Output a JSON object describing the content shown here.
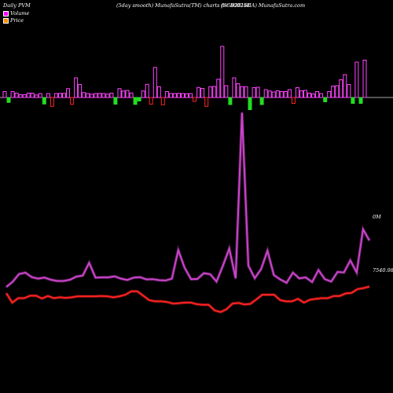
{
  "header": {
    "left": "Daily PVM",
    "middle": "(5day smooth) MunafaSutra(TM) charts for 800258",
    "right": "(SGB2016IIA) MunafaSutra.com"
  },
  "legend": [
    {
      "label": "Volume",
      "color": "#ff00ff"
    },
    {
      "label": "Price",
      "color": "#ff8c00"
    }
  ],
  "end_labels": {
    "volume": "0M",
    "price": "7540.98"
  },
  "colors": {
    "background": "#000000",
    "baseline": "#aaaaaa",
    "volume_line": "#cc44cc",
    "price_line": "#ff2222",
    "bar_up": "#ff00ff",
    "bar_up_outline": "#ff44ff",
    "bar_down": "#22dd22",
    "bar_down_red": "#ff2222"
  },
  "chart_data": {
    "type": "line",
    "title": "",
    "series": [
      {
        "name": "Volume",
        "values": [
          0.3,
          0.5,
          0.8,
          0.85,
          0.68,
          0.62,
          0.66,
          0.58,
          0.53,
          0.53,
          0.58,
          0.7,
          0.74,
          1.23,
          0.66,
          0.67,
          0.67,
          0.71,
          0.62,
          0.57,
          0.66,
          0.68,
          0.59,
          0.6,
          0.56,
          0.55,
          0.62,
          1.72,
          1.04,
          0.6,
          0.61,
          0.83,
          0.79,
          0.51,
          1.12,
          1.78,
          0.63,
          7.02,
          1.12,
          0.64,
          0.99,
          1.7,
          0.76,
          0.59,
          0.46,
          0.85,
          0.63,
          0.67,
          0.49,
          0.95,
          0.6,
          0.51,
          0.88,
          0.86,
          1.32,
          0.86,
          2.52,
          2.09
        ]
      },
      {
        "name": "Price",
        "values": [
          0.3,
          0.0,
          0.14,
          0.14,
          0.22,
          0.22,
          0.13,
          0.21,
          0.14,
          0.17,
          0.15,
          0.17,
          0.2,
          0.2,
          0.2,
          0.2,
          0.21,
          0.2,
          0.17,
          0.2,
          0.25,
          0.36,
          0.36,
          0.22,
          0.08,
          0.04,
          0.04,
          0.02,
          -0.03,
          -0.02,
          0.0,
          0.0,
          -0.05,
          -0.07,
          -0.07,
          -0.25,
          -0.3,
          -0.21,
          -0.03,
          -0.01,
          -0.06,
          -0.04,
          0.1,
          0.25,
          0.25,
          0.25,
          0.08,
          0.04,
          0.04,
          0.12,
          0.0,
          0.09,
          0.12,
          0.14,
          0.14,
          0.21,
          0.21,
          0.29,
          0.31,
          0.43,
          0.46,
          0.51
        ]
      }
    ],
    "bars": [
      {
        "h": 0.3,
        "dir": "up"
      },
      {
        "h": -0.25,
        "dir": "down"
      },
      {
        "h": 0.3,
        "dir": "up"
      },
      {
        "h": 0.22,
        "dir": "up"
      },
      {
        "h": 0.14,
        "dir": "up"
      },
      {
        "h": 0.14,
        "dir": "up"
      },
      {
        "h": 0.22,
        "dir": "up"
      },
      {
        "h": 0.22,
        "dir": "up"
      },
      {
        "h": 0.13,
        "dir": "up"
      },
      {
        "h": 0.2,
        "dir": "up"
      },
      {
        "h": -0.33,
        "dir": "down"
      },
      {
        "h": 0.2,
        "dir": "up"
      },
      {
        "h": -0.45,
        "dir": "downred"
      },
      {
        "h": 0.2,
        "dir": "up"
      },
      {
        "h": 0.21,
        "dir": "up"
      },
      {
        "h": 0.21,
        "dir": "up"
      },
      {
        "h": 0.45,
        "dir": "up"
      },
      {
        "h": -0.35,
        "dir": "downred"
      },
      {
        "h": 1.0,
        "dir": "up"
      },
      {
        "h": 0.66,
        "dir": "up"
      },
      {
        "h": 0.25,
        "dir": "up"
      },
      {
        "h": 0.2,
        "dir": "up"
      },
      {
        "h": 0.17,
        "dir": "up"
      },
      {
        "h": 0.2,
        "dir": "up"
      },
      {
        "h": 0.21,
        "dir": "up"
      },
      {
        "h": 0.2,
        "dir": "up"
      },
      {
        "h": 0.17,
        "dir": "up"
      },
      {
        "h": 0.22,
        "dir": "up"
      },
      {
        "h": -0.34,
        "dir": "down"
      },
      {
        "h": 0.45,
        "dir": "up"
      },
      {
        "h": 0.33,
        "dir": "up"
      },
      {
        "h": 0.36,
        "dir": "up"
      },
      {
        "h": 0.23,
        "dir": "up"
      },
      {
        "h": -0.35,
        "dir": "down"
      },
      {
        "h": -0.18,
        "dir": "down"
      },
      {
        "h": 0.33,
        "dir": "up"
      },
      {
        "h": 0.67,
        "dir": "up"
      },
      {
        "h": -0.34,
        "dir": "downred"
      },
      {
        "h": 1.53,
        "dir": "up"
      },
      {
        "h": 0.55,
        "dir": "up"
      },
      {
        "h": -0.37,
        "dir": "downred"
      },
      {
        "h": 0.3,
        "dir": "up"
      },
      {
        "h": 0.2,
        "dir": "up"
      },
      {
        "h": 0.2,
        "dir": "up"
      },
      {
        "h": 0.21,
        "dir": "up"
      },
      {
        "h": 0.2,
        "dir": "up"
      },
      {
        "h": 0.19,
        "dir": "up"
      },
      {
        "h": 0.2,
        "dir": "up"
      },
      {
        "h": -0.2,
        "dir": "downred"
      },
      {
        "h": 0.51,
        "dir": "up"
      },
      {
        "h": 0.46,
        "dir": "up"
      },
      {
        "h": -0.45,
        "dir": "downred"
      },
      {
        "h": 0.55,
        "dir": "up"
      },
      {
        "h": 0.56,
        "dir": "up"
      },
      {
        "h": 0.93,
        "dir": "up"
      },
      {
        "h": 2.6,
        "dir": "up"
      },
      {
        "h": 0.6,
        "dir": "up"
      },
      {
        "h": -0.36,
        "dir": "down"
      },
      {
        "h": 1.0,
        "dir": "up"
      },
      {
        "h": 0.7,
        "dir": "up"
      },
      {
        "h": 0.55,
        "dir": "up"
      },
      {
        "h": 0.55,
        "dir": "up"
      },
      {
        "h": -0.62,
        "dir": "down"
      },
      {
        "h": 0.5,
        "dir": "up"
      },
      {
        "h": 0.52,
        "dir": "up"
      },
      {
        "h": -0.36,
        "dir": "down"
      },
      {
        "h": 0.4,
        "dir": "up"
      },
      {
        "h": 0.33,
        "dir": "up"
      },
      {
        "h": 0.28,
        "dir": "up"
      },
      {
        "h": 0.34,
        "dir": "up"
      },
      {
        "h": 0.3,
        "dir": "up"
      },
      {
        "h": 0.3,
        "dir": "up"
      },
      {
        "h": 0.4,
        "dir": "up"
      },
      {
        "h": -0.3,
        "dir": "downred"
      },
      {
        "h": 0.5,
        "dir": "up"
      },
      {
        "h": 0.34,
        "dir": "up"
      },
      {
        "h": 0.36,
        "dir": "up"
      },
      {
        "h": 0.22,
        "dir": "up"
      },
      {
        "h": 0.18,
        "dir": "up"
      },
      {
        "h": 0.3,
        "dir": "up"
      },
      {
        "h": 0.2,
        "dir": "up"
      },
      {
        "h": -0.22,
        "dir": "down"
      },
      {
        "h": 0.3,
        "dir": "up"
      },
      {
        "h": 0.58,
        "dir": "up"
      },
      {
        "h": 0.6,
        "dir": "up"
      },
      {
        "h": 0.9,
        "dir": "up"
      },
      {
        "h": 1.16,
        "dir": "up"
      },
      {
        "h": 0.66,
        "dir": "up"
      },
      {
        "h": -0.3,
        "dir": "down"
      },
      {
        "h": 1.8,
        "dir": "up"
      },
      {
        "h": -0.3,
        "dir": "down"
      },
      {
        "h": 1.9,
        "dir": "up"
      }
    ],
    "grid": false,
    "legend_position": "top-left"
  }
}
